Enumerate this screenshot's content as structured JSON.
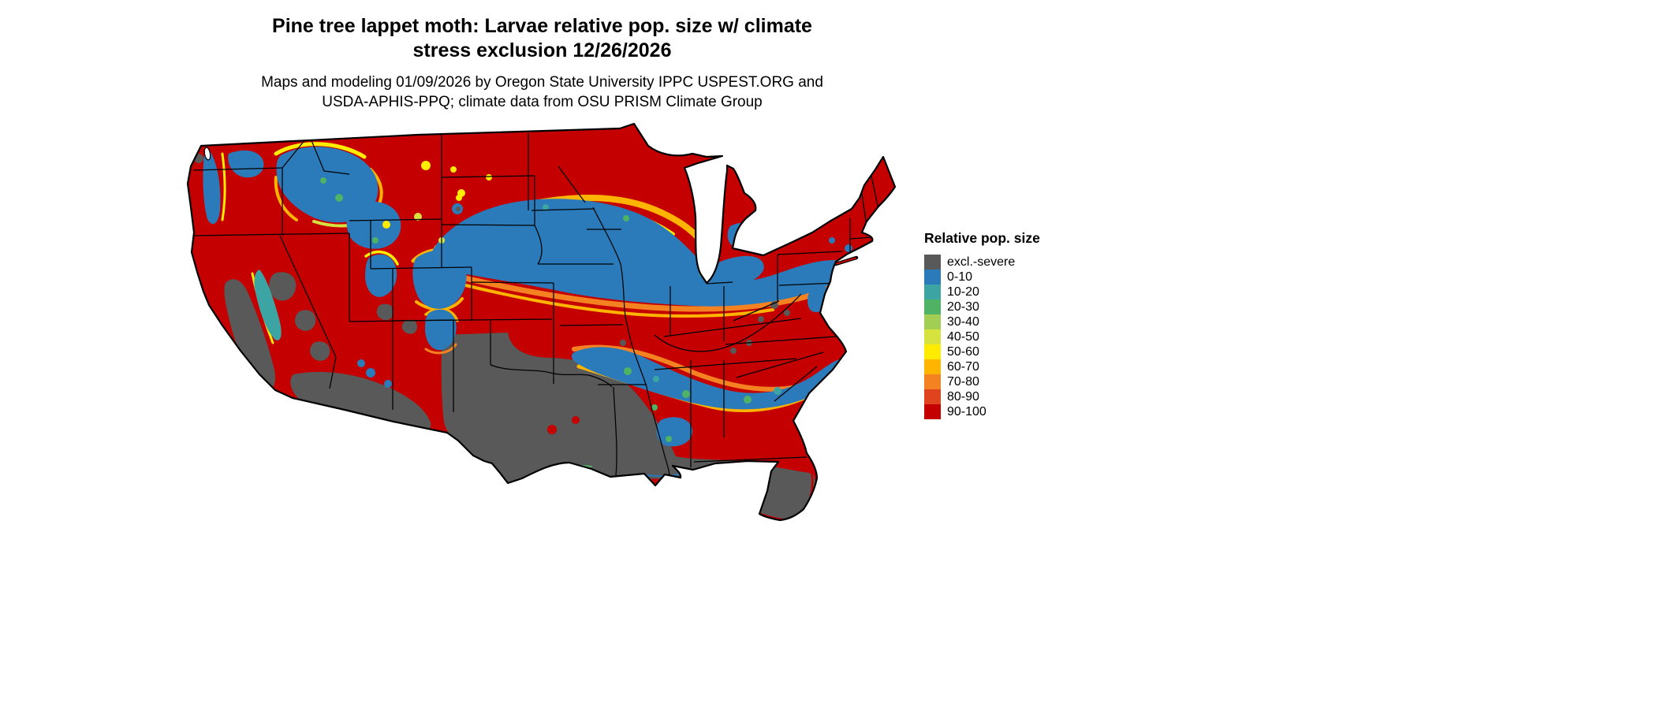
{
  "header": {
    "title_line1": "Pine tree lappet moth: Larvae relative pop. size w/ climate",
    "title_line2": "stress exclusion 12/26/2026",
    "subtitle_line1": "Maps and modeling 01/09/2026 by Oregon State University IPPC USPEST.ORG and",
    "subtitle_line2": "USDA-APHIS-PPQ; climate data from OSU PRISM Climate Group"
  },
  "legend": {
    "title": "Relative pop. size",
    "items": [
      {
        "key": "excl",
        "label": "excl.-severe",
        "color": "#595959"
      },
      {
        "key": "r0",
        "label": "0-10",
        "color": "#2b7bba"
      },
      {
        "key": "r10",
        "label": "10-20",
        "color": "#3da4a4"
      },
      {
        "key": "r20",
        "label": "20-30",
        "color": "#50b264"
      },
      {
        "key": "r30",
        "label": "30-40",
        "color": "#a2ce55"
      },
      {
        "key": "r40",
        "label": "40-50",
        "color": "#d6e33f"
      },
      {
        "key": "r50",
        "label": "50-60",
        "color": "#ffec00"
      },
      {
        "key": "r60",
        "label": "60-70",
        "color": "#ffb400"
      },
      {
        "key": "r70",
        "label": "70-80",
        "color": "#f58220"
      },
      {
        "key": "r80",
        "label": "80-90",
        "color": "#e0441f"
      },
      {
        "key": "r90",
        "label": "90-100",
        "color": "#c40000"
      }
    ]
  },
  "map": {
    "area": "Continental United States",
    "type": "raster choropleth",
    "background_color": "#ffffff",
    "border_color": "#000000"
  }
}
